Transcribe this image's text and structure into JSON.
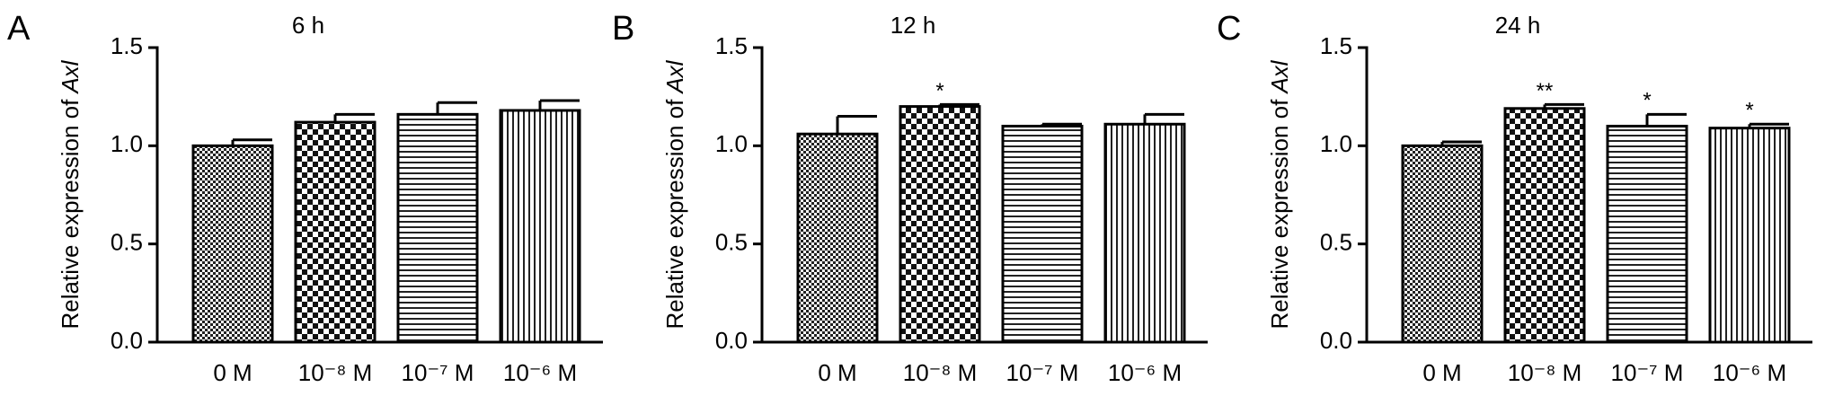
{
  "chart_data": [
    {
      "type": "bar",
      "panel_label": "A",
      "title": "6 h",
      "ylabel": [
        "Relative expression of",
        "Axl"
      ],
      "categories": [
        "0 M",
        "10⁻⁸ M",
        "10⁻⁷ M",
        "10⁻⁶ M"
      ],
      "values": [
        1.0,
        1.12,
        1.16,
        1.18
      ],
      "errors": [
        0.03,
        0.04,
        0.06,
        0.05
      ],
      "ylim": [
        0,
        1.5
      ],
      "yticks": [
        {
          "value": 0,
          "label": "0.0"
        },
        0.5,
        {
          "value": 1,
          "label": "1.0"
        },
        1.5
      ]
    },
    {
      "type": "bar",
      "panel_label": "B",
      "title": "12 h",
      "ylabel": [
        "Relative expression of",
        "Axl"
      ],
      "categories": [
        "0 M",
        "10⁻⁸ M",
        "10⁻⁷ M",
        "10⁻⁶ M"
      ],
      "values": [
        1.06,
        1.2,
        1.1,
        1.11
      ],
      "errors": [
        0.09,
        0.01,
        0.01,
        0.05
      ],
      "annotations": [
        null,
        "*",
        null,
        null
      ],
      "ylim": [
        0,
        1.5
      ],
      "yticks": [
        {
          "value": 0,
          "label": "0.0"
        },
        0.5,
        {
          "value": 1,
          "label": "1.0"
        },
        1.5
      ]
    },
    {
      "type": "bar",
      "panel_label": "C",
      "title": "24 h",
      "ylabel": [
        "Relative expression of",
        "Axl"
      ],
      "categories": [
        "0 M",
        "10⁻⁸ M",
        "10⁻⁷ M",
        "10⁻⁶ M"
      ],
      "values": [
        1.0,
        1.19,
        1.1,
        1.09
      ],
      "errors": [
        0.02,
        0.02,
        0.06,
        0.02
      ],
      "annotations": [
        null,
        "**",
        "*",
        "*"
      ],
      "ylim": [
        0,
        1.5
      ],
      "yticks": [
        {
          "value": 0,
          "label": "0.0"
        },
        0.5,
        {
          "value": 1,
          "label": "1.0"
        },
        1.5
      ]
    }
  ]
}
